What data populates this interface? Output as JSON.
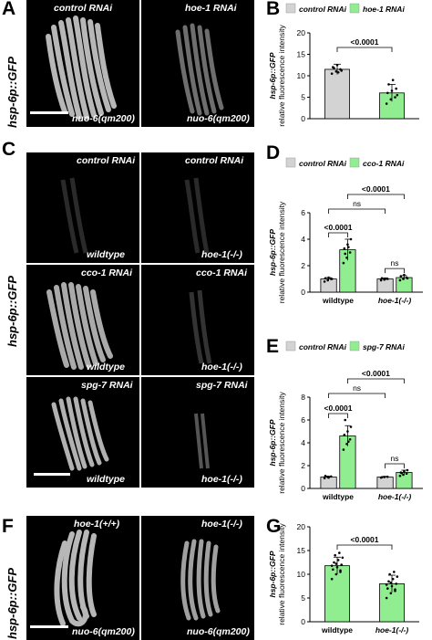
{
  "panels": {
    "A": {
      "letter": "A",
      "ylabel": "hsp-6p::GFP",
      "images": [
        {
          "top": "control RNAi",
          "bottom": "nuo-6(qm200)"
        },
        {
          "top": "hoe-1 RNAi",
          "bottom": "nuo-6(qm200)"
        }
      ]
    },
    "C": {
      "letter": "C",
      "ylabel": "hsp-6p::GFP",
      "images": [
        {
          "top": "control RNAi",
          "bottom": "wildtype"
        },
        {
          "top": "control RNAi",
          "bottom": "hoe-1(-/-)"
        },
        {
          "top": "cco-1 RNAi",
          "bottom": "wildtype"
        },
        {
          "top": "cco-1 RNAi",
          "bottom": "hoe-1(-/-)"
        },
        {
          "top": "spg-7 RNAi",
          "bottom": "wildtype"
        },
        {
          "top": "spg-7 RNAi",
          "bottom": "hoe-1(-/-)"
        }
      ]
    },
    "F": {
      "letter": "F",
      "ylabel": "hsp-6p::GFP",
      "images": [
        {
          "top": "hoe-1(+/+)",
          "bottom": "nuo-6(qm200)"
        },
        {
          "top": "hoe-1(-/-)",
          "bottom": "nuo-6(qm200)"
        }
      ]
    }
  },
  "chart_data": [
    {
      "panel": "B",
      "type": "bar",
      "ylabel_1": "hsp-6p::GFP",
      "ylabel_2": "relative fluorescence intensity",
      "ylim": [
        0,
        20
      ],
      "yticks": [
        0,
        5,
        10,
        15,
        20
      ],
      "legend": [
        "control RNAi",
        "hoe-1 RNAi"
      ],
      "categories": [
        "control RNAi",
        "hoe-1 RNAi"
      ],
      "values": [
        11.5,
        6.0
      ],
      "errors": [
        1.2,
        2.0
      ],
      "colors": [
        "#d3d3d3",
        "#90ee90"
      ],
      "points": [
        [
          10.5,
          11.0,
          11.5,
          12.0,
          12.5,
          11.2,
          11.8,
          10.8
        ],
        [
          3.5,
          4.5,
          5.0,
          6.0,
          6.5,
          7.0,
          8.0,
          9.0,
          5.5
        ]
      ],
      "significance": [
        {
          "label": "<0.0001",
          "from": 0,
          "to": 1
        }
      ]
    },
    {
      "panel": "D",
      "type": "bar",
      "ylabel_1": "hsp-6p::GFP",
      "ylabel_2": "relative fluorescence intensity",
      "ylim": [
        0,
        6
      ],
      "yticks": [
        0,
        2,
        4,
        6
      ],
      "legend": [
        "control RNAi",
        "cco-1 RNAi"
      ],
      "categories": [
        "wildtype",
        "hoe-1(-/-)"
      ],
      "series": [
        {
          "values": [
            1.0,
            1.0
          ],
          "errors": [
            0.1,
            0.08
          ],
          "color": "#d3d3d3",
          "points": [
            [
              0.8,
              0.9,
              1.0,
              1.05,
              1.1,
              1.0
            ],
            [
              0.9,
              0.95,
              1.0,
              1.05,
              1.0
            ]
          ]
        },
        {
          "values": [
            3.2,
            1.1
          ],
          "errors": [
            0.8,
            0.15
          ],
          "color": "#90ee90",
          "points": [
            [
              2.2,
              2.6,
              3.0,
              3.3,
              3.6,
              4.0,
              2.9,
              3.4
            ],
            [
              0.9,
              1.0,
              1.1,
              1.2,
              1.3,
              1.05
            ]
          ]
        }
      ],
      "significance": [
        {
          "label": "<0.0001",
          "from": [
            0,
            0
          ],
          "to": [
            0,
            1
          ],
          "level": 1
        },
        {
          "label": "ns",
          "from": [
            1,
            0
          ],
          "to": [
            1,
            1
          ],
          "level": 1
        },
        {
          "label": "ns",
          "from": [
            0,
            0
          ],
          "to": [
            1,
            0
          ],
          "level": 2
        },
        {
          "label": "<0.0001",
          "from": [
            0,
            1
          ],
          "to": [
            1,
            1
          ],
          "level": 3
        }
      ]
    },
    {
      "panel": "E",
      "type": "bar",
      "ylabel_1": "hsp-6p::GFP",
      "ylabel_2": "relative fluorescence intensity",
      "ylim": [
        0,
        8
      ],
      "yticks": [
        0,
        2,
        4,
        6,
        8
      ],
      "legend": [
        "control RNAi",
        "spg-7 RNAi"
      ],
      "categories": [
        "wildtype",
        "hoe-1(-/-)"
      ],
      "series": [
        {
          "values": [
            1.0,
            1.0
          ],
          "errors": [
            0.08,
            0.06
          ],
          "color": "#d3d3d3",
          "points": [
            [
              0.9,
              1.0,
              1.05,
              1.1,
              0.95
            ],
            [
              0.95,
              1.0,
              1.02,
              0.98
            ]
          ]
        },
        {
          "values": [
            4.6,
            1.4
          ],
          "errors": [
            0.9,
            0.2
          ],
          "color": "#90ee90",
          "points": [
            [
              3.4,
              3.9,
              4.3,
              4.7,
              5.0,
              5.4,
              6.0,
              4.1
            ],
            [
              1.1,
              1.2,
              1.3,
              1.4,
              1.5,
              1.6,
              1.35
            ]
          ]
        }
      ],
      "significance": [
        {
          "label": "<0.0001",
          "from": [
            0,
            0
          ],
          "to": [
            0,
            1
          ],
          "level": 1
        },
        {
          "label": "ns",
          "from": [
            1,
            0
          ],
          "to": [
            1,
            1
          ],
          "level": 1
        },
        {
          "label": "ns",
          "from": [
            0,
            0
          ],
          "to": [
            1,
            0
          ],
          "level": 2
        },
        {
          "label": "<0.0001",
          "from": [
            0,
            1
          ],
          "to": [
            1,
            1
          ],
          "level": 3
        }
      ]
    },
    {
      "panel": "G",
      "type": "bar",
      "ylabel_1": "hsp-6p::GFP",
      "ylabel_2": "relative fluorescence intensity",
      "ylim": [
        0,
        20
      ],
      "yticks": [
        0,
        5,
        10,
        15,
        20
      ],
      "categories": [
        "wildtype",
        "hoe-1(-/-)"
      ],
      "values": [
        11.8,
        8.0
      ],
      "errors": [
        1.8,
        1.8
      ],
      "colors": [
        "#90ee90",
        "#90ee90"
      ],
      "points": [
        [
          9.0,
          10.0,
          10.5,
          11.0,
          11.5,
          12.0,
          12.5,
          13.0,
          13.5,
          14.0,
          14.5,
          11.8,
          12.2,
          10.8
        ],
        [
          5.0,
          6.0,
          6.5,
          7.0,
          7.5,
          8.0,
          8.5,
          9.0,
          9.5,
          10.0,
          10.5,
          7.8,
          8.2,
          6.8
        ]
      ],
      "significance": [
        {
          "label": "<0.0001",
          "from": 0,
          "to": 1
        }
      ]
    }
  ]
}
